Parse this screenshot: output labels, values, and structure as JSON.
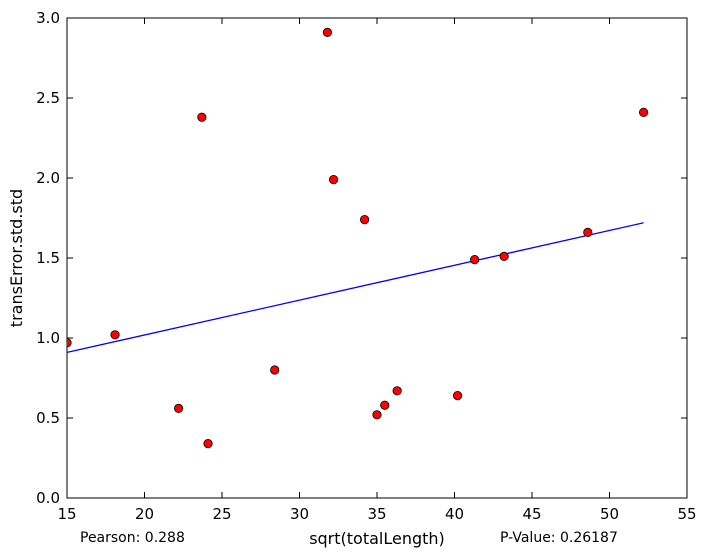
{
  "chart_data": {
    "type": "scatter",
    "xlabel": "sqrt(totalLength)",
    "ylabel": "transError.std.std",
    "xlim": [
      15,
      55
    ],
    "ylim": [
      0.0,
      3.0
    ],
    "xticks": [
      15,
      20,
      25,
      30,
      35,
      40,
      45,
      50,
      55
    ],
    "xtick_labels": [
      "15",
      "20",
      "25",
      "30",
      "35",
      "40",
      "45",
      "50",
      "55"
    ],
    "yticks": [
      0.0,
      0.5,
      1.0,
      1.5,
      2.0,
      2.5,
      3.0
    ],
    "ytick_labels": [
      "0.0",
      "0.5",
      "1.0",
      "1.5",
      "2.0",
      "2.5",
      "3.0"
    ],
    "grid": false,
    "points": {
      "x": [
        15.0,
        18.1,
        22.2,
        23.7,
        24.1,
        28.4,
        31.8,
        32.2,
        34.2,
        35.0,
        35.5,
        36.3,
        40.2,
        41.3,
        43.2,
        48.6,
        52.2
      ],
      "y": [
        0.97,
        1.02,
        0.56,
        2.38,
        0.34,
        0.8,
        2.91,
        1.99,
        1.74,
        0.52,
        0.58,
        0.67,
        0.64,
        1.49,
        1.51,
        1.66,
        2.41
      ],
      "color": "#ff0000"
    },
    "regression_line": {
      "x": [
        15.0,
        52.2
      ],
      "y": [
        0.91,
        1.72
      ],
      "color": "#0000ff"
    },
    "annotations": {
      "pearson": "Pearson: 0.288",
      "p_value": "P-Value: 0.26187"
    }
  }
}
